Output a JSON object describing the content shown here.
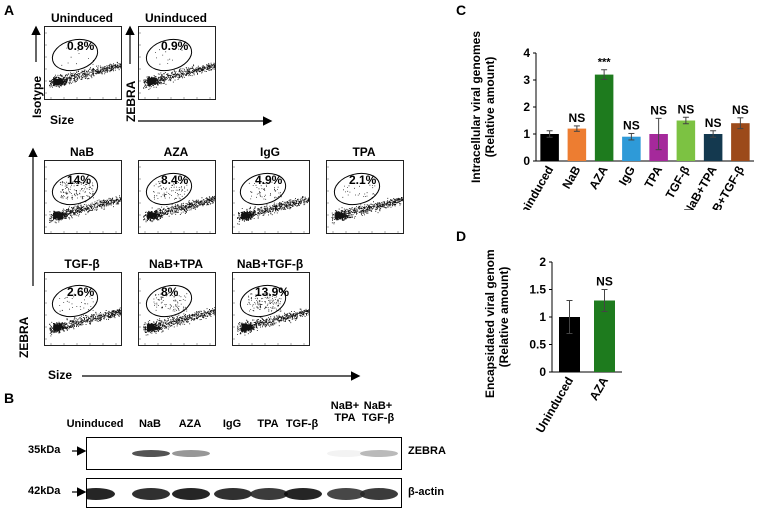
{
  "panelA": {
    "letter": "A",
    "top_row": [
      {
        "title": "Uninduced",
        "pct": "0.8%"
      },
      {
        "title": "Uninduced",
        "pct": "0.9%"
      }
    ],
    "top_y_labels": [
      "Isotype",
      "ZEBRA"
    ],
    "top_x_label": "Size",
    "grid": [
      {
        "title": "NaB",
        "pct": "14%"
      },
      {
        "title": "AZA",
        "pct": "8.4%"
      },
      {
        "title": "IgG",
        "pct": "4.9%"
      },
      {
        "title": "TPA",
        "pct": "2.1%"
      },
      {
        "title": "TGF-β",
        "pct": "2.6%"
      },
      {
        "title": "NaB+TPA",
        "pct": "8%"
      },
      {
        "title": "NaB+TGF-β",
        "pct": "13.9%"
      }
    ],
    "grid_y_label": "ZEBRA",
    "grid_x_label": "Size"
  },
  "panelB": {
    "letter": "B",
    "lanes": [
      "Uninduced",
      "NaB",
      "AZA",
      "IgG",
      "TPA",
      "TGF-β",
      "NaB+\nTPA",
      "NaB+\nTGF-β"
    ],
    "rows": [
      {
        "mw": "35kDa",
        "protein": "ZEBRA",
        "intensities": [
          0.0,
          0.75,
          0.45,
          0.0,
          0.0,
          0.0,
          0.05,
          0.3
        ]
      },
      {
        "mw": "42kDa",
        "protein": "β-actin",
        "intensities": [
          0.95,
          0.9,
          0.95,
          0.9,
          0.85,
          0.95,
          0.8,
          0.85
        ]
      }
    ]
  },
  "chart_data": [
    {
      "panel": "C",
      "type": "bar",
      "categories": [
        "Uninduced",
        "NaB",
        "AZA",
        "IgG",
        "TPA",
        "TGF-β",
        "NaB+TPA",
        "NaB+TGF-β"
      ],
      "values": [
        1.0,
        1.2,
        3.2,
        0.9,
        1.0,
        1.5,
        1.0,
        1.4
      ],
      "errors": [
        0.12,
        0.1,
        0.18,
        0.12,
        0.58,
        0.12,
        0.12,
        0.2
      ],
      "colors": [
        "#000000",
        "#ED7D31",
        "#1E7B1E",
        "#2E9AD8",
        "#A5299B",
        "#7CC242",
        "#14394F",
        "#9C4A1A"
      ],
      "annotations": [
        "",
        "NS",
        "***",
        "NS",
        "NS",
        "NS",
        "NS",
        "NS"
      ],
      "ylabel": "Intracellular viral genomes\n(Relative amount)",
      "ylim": [
        0,
        4
      ],
      "yticks": [
        0,
        1,
        2,
        3,
        4
      ]
    },
    {
      "panel": "D",
      "type": "bar",
      "categories": [
        "Uninduced",
        "AZA"
      ],
      "values": [
        1.0,
        1.3
      ],
      "errors": [
        0.3,
        0.2
      ],
      "colors": [
        "#000000",
        "#1E7B1E"
      ],
      "annotations": [
        "",
        "NS"
      ],
      "ylabel": "Encapsidated viral genomes\n(Relative amount)",
      "ylim": [
        0,
        2
      ],
      "yticks": [
        0,
        0.5,
        1,
        1.5,
        2
      ]
    }
  ],
  "panel_letters": {
    "C": "C",
    "D": "D"
  }
}
